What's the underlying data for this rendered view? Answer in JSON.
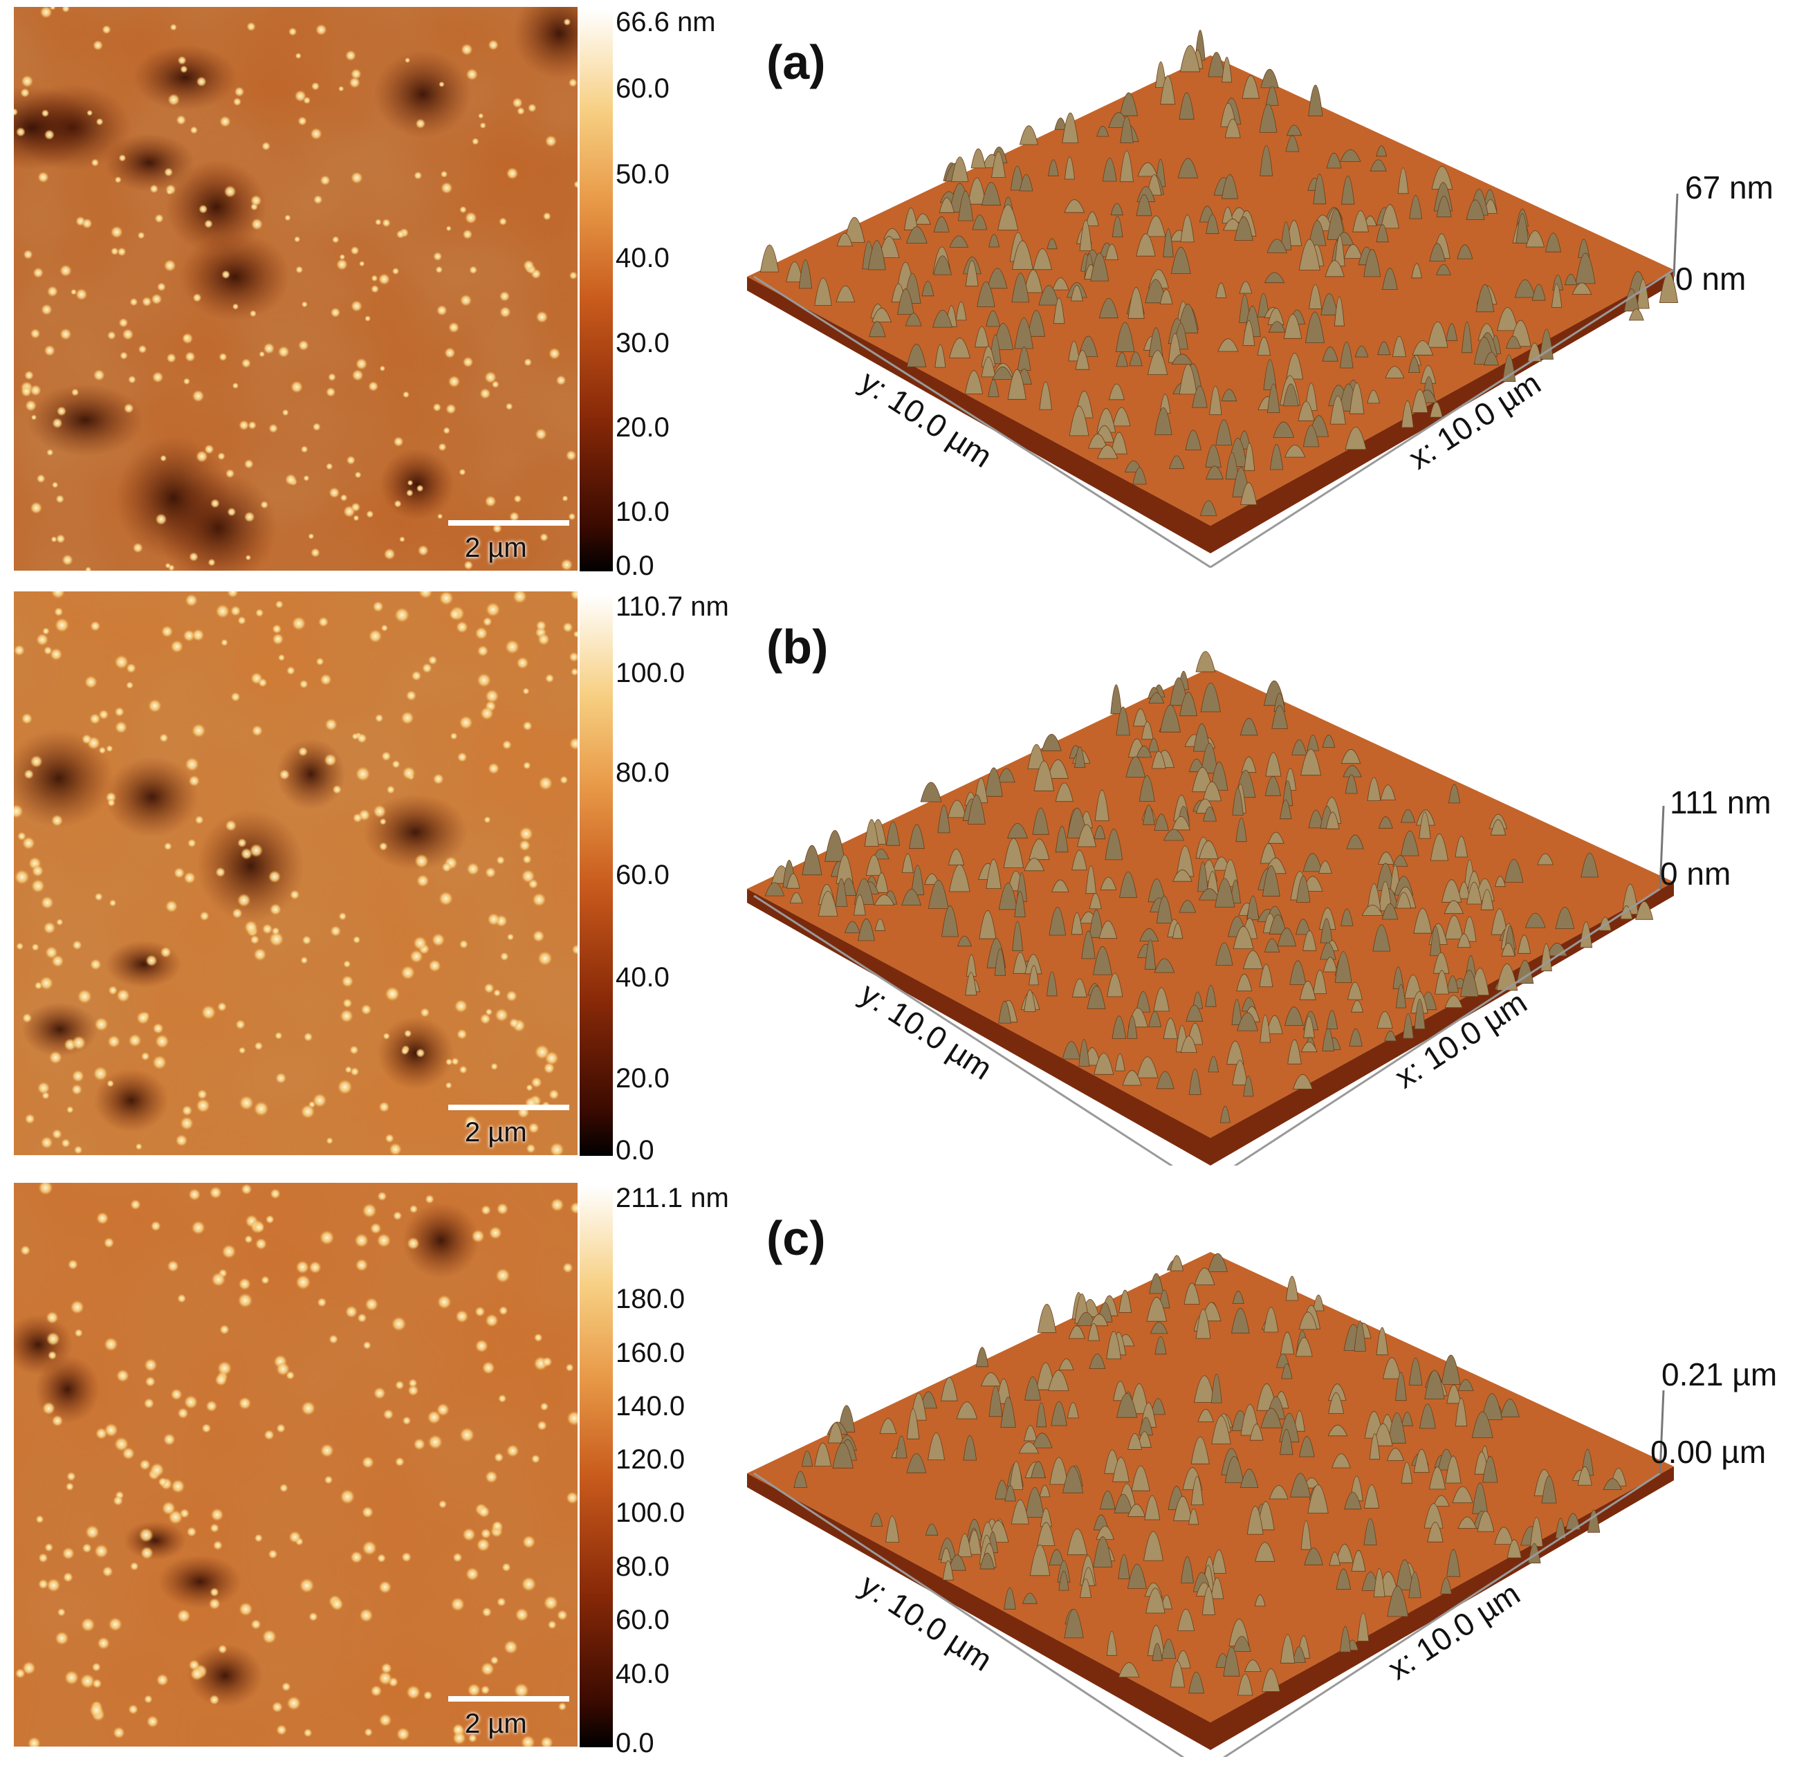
{
  "panels": [
    {
      "label": "(a)",
      "colorbar_max": "66.6 nm",
      "colorbar_ticks": [
        "60.0",
        "50.0",
        "40.0",
        "30.0",
        "20.0",
        "10.0",
        "0.0"
      ],
      "scale_bar": "2 µm",
      "z_max": "67 nm",
      "z_min": "0 nm",
      "x_axis": "x: 10.0 µm",
      "y_axis": "y: 10.0 µm"
    },
    {
      "label": "(b)",
      "colorbar_max": "110.7 nm",
      "colorbar_ticks": [
        "100.0",
        "80.0",
        "60.0",
        "40.0",
        "20.0",
        "0.0"
      ],
      "scale_bar": "2 µm",
      "z_max": "111 nm",
      "z_min": "0 nm",
      "x_axis": "x: 10.0 µm",
      "y_axis": "y: 10.0 µm"
    },
    {
      "label": "(c)",
      "colorbar_max": "211.1 nm",
      "colorbar_ticks": [
        "180.0",
        "160.0",
        "140.0",
        "120.0",
        "100.0",
        "80.0",
        "60.0",
        "40.0",
        "0.0"
      ],
      "scale_bar": "2 µm",
      "z_max": "0.21 µm",
      "z_min": "0.00 µm",
      "x_axis": "x: 10.0 µm",
      "y_axis": "y: 10.0 µm"
    }
  ],
  "colors": {
    "colormap_dark": "#1a0500",
    "colormap_mid": "#b8501c",
    "colormap_light": "#fff4de",
    "peak": "#c9b07a"
  }
}
